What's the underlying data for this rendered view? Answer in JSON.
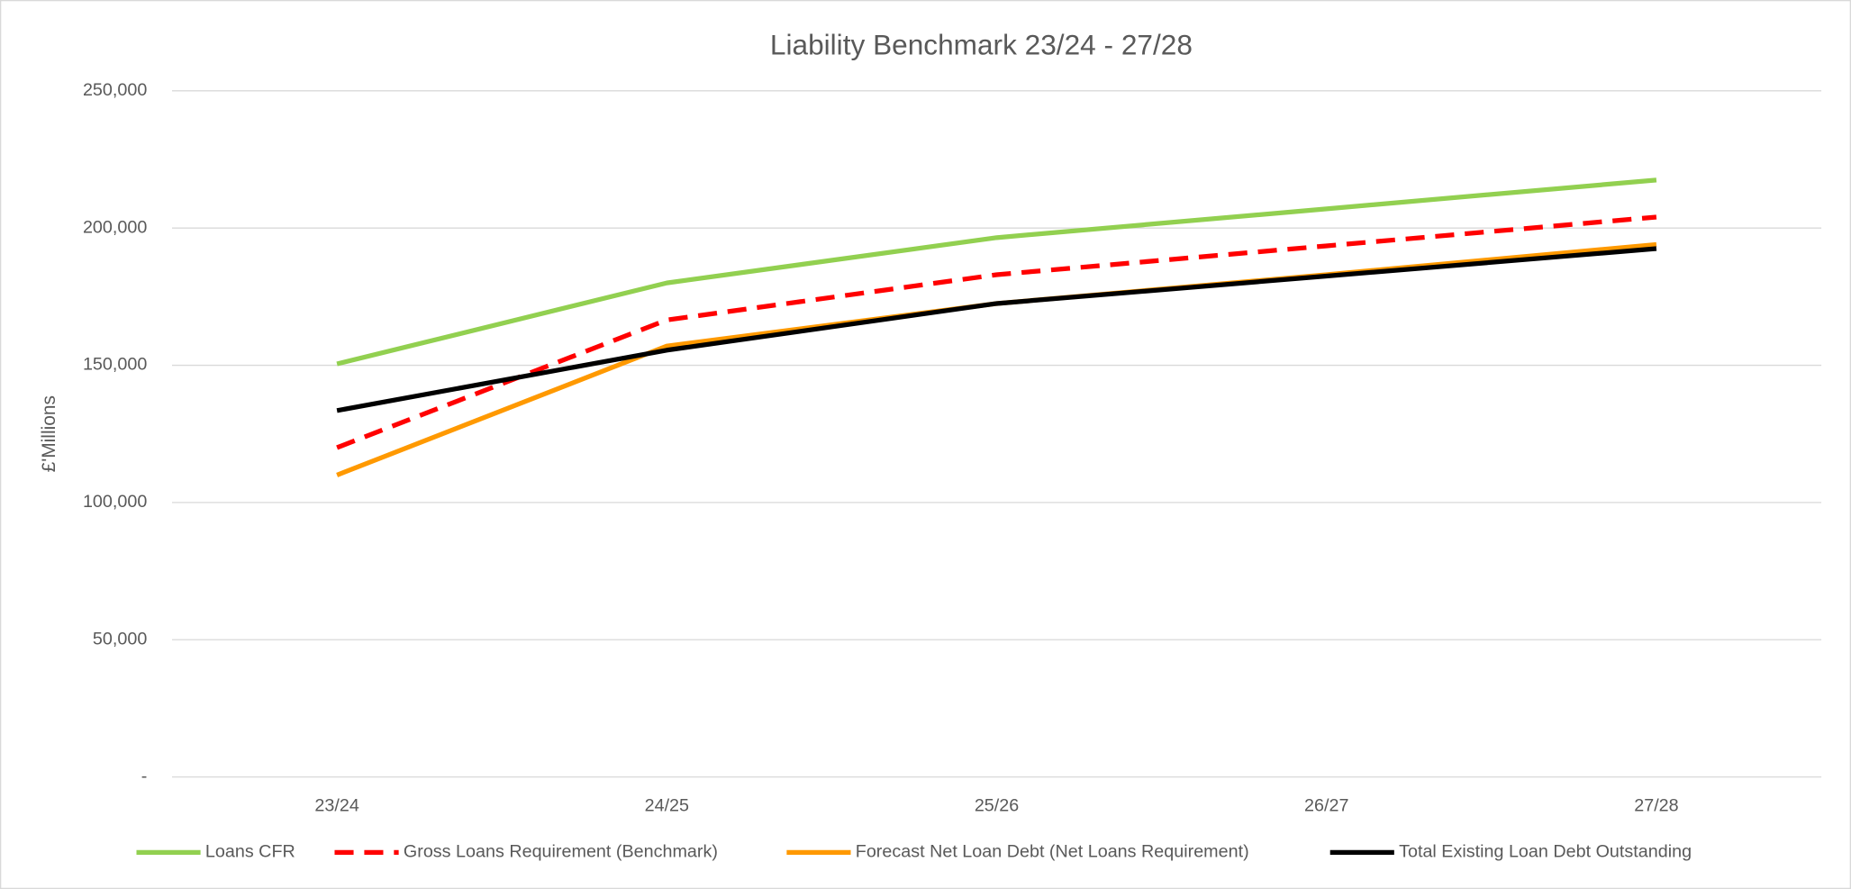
{
  "chart_data": {
    "type": "line",
    "title": "Liability Benchmark 23/24 - 27/28",
    "y_label": "£'Millions",
    "categories": [
      "23/24",
      "24/25",
      "25/26",
      "26/27",
      "27/28"
    ],
    "series": [
      {
        "name": "Loans CFR",
        "color": "#92d050",
        "values": [
          150500,
          180000,
          196500,
          207000,
          217500
        ]
      },
      {
        "name": "Gross Loans Requirement (Benchmark)",
        "color": "#ff0000",
        "line_style": "dashed",
        "values": [
          120000,
          166500,
          183000,
          193500,
          204000
        ]
      },
      {
        "name": "Forecast Net Loan Debt (Net Loans Requirement)",
        "color": "#ff9900",
        "values": [
          110000,
          157000,
          172500,
          183000,
          194000
        ]
      },
      {
        "name": "Total Existing Loan Debt Outstanding",
        "color": "#000000",
        "values": [
          133500,
          155500,
          172500,
          182500,
          192500
        ]
      }
    ],
    "ylim": [
      0,
      250000
    ],
    "yticks": [
      {
        "value": 0,
        "label": "-"
      },
      {
        "value": 50000,
        "label": "50,000"
      },
      {
        "value": 100000,
        "label": "100,000"
      },
      {
        "value": 150000,
        "label": "150,000"
      },
      {
        "value": 200000,
        "label": "200,000"
      },
      {
        "value": 250000,
        "label": "250,000"
      }
    ],
    "grid": true,
    "legend": "bottom"
  }
}
